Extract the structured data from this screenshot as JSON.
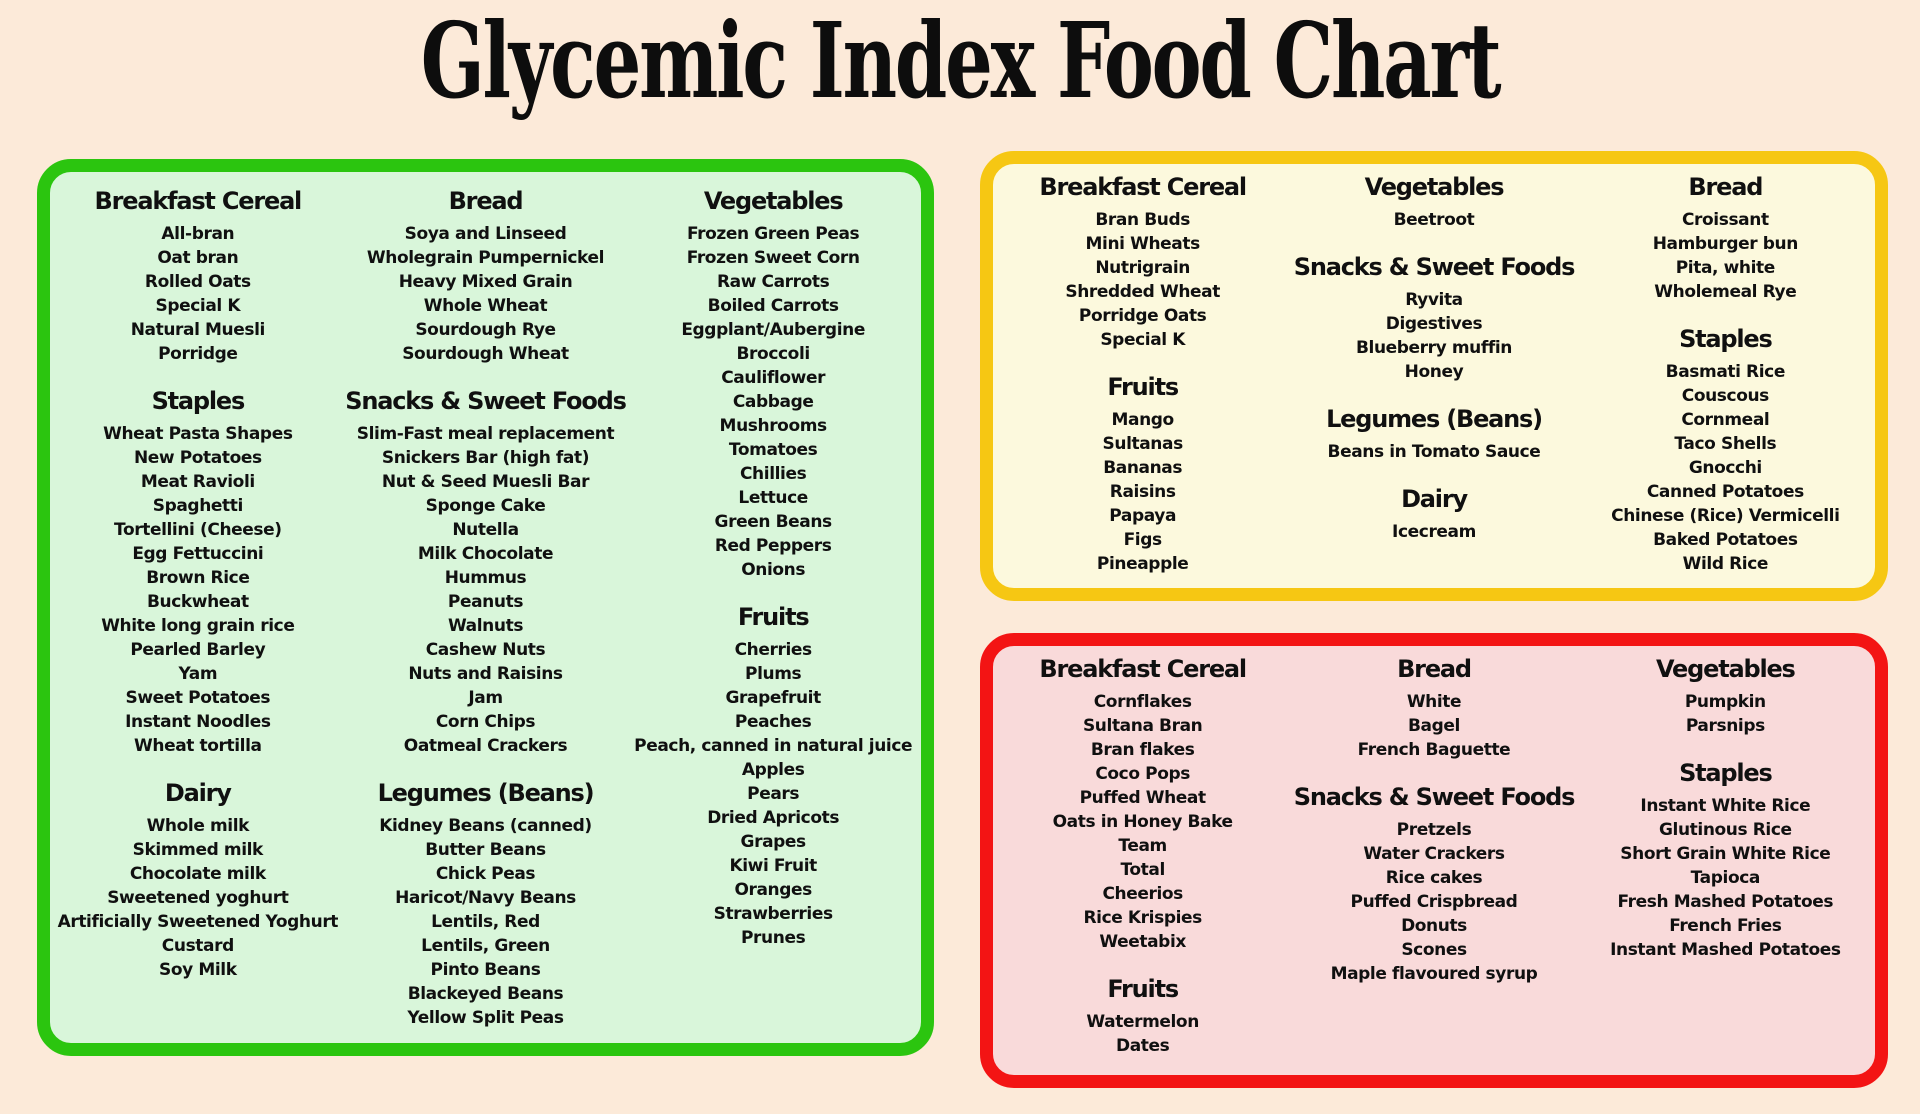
{
  "title": "Glycemic Index Food Chart",
  "colors": {
    "background": "#fcead9",
    "text": "#101010",
    "green_border": "#2bc50f",
    "green_fill": "#d9f6da",
    "yellow_border": "#f6c713",
    "yellow_fill": "#fcf9dd",
    "red_border": "#f31414",
    "red_fill": "#f9dada"
  },
  "panels": [
    {
      "id": "green",
      "border_color": "#2bc50f",
      "fill_color": "#d9f6da",
      "columns": [
        [
          {
            "heading": "Breakfast Cereal",
            "items": [
              "All-bran",
              "Oat bran",
              "Rolled Oats",
              "Special K",
              "Natural Muesli",
              "Porridge"
            ]
          },
          {
            "heading": "Staples",
            "items": [
              "Wheat Pasta Shapes",
              "New Potatoes",
              "Meat Ravioli",
              "Spaghetti",
              "Tortellini (Cheese)",
              "Egg Fettuccini",
              "Brown Rice",
              "Buckwheat",
              "White long grain rice",
              "Pearled Barley",
              "Yam",
              "Sweet Potatoes",
              "Instant Noodles",
              "Wheat tortilla"
            ]
          },
          {
            "heading": "Dairy",
            "items": [
              "Whole milk",
              "Skimmed milk",
              "Chocolate milk",
              "Sweetened yoghurt",
              "Artificially Sweetened Yoghurt",
              "Custard",
              "Soy Milk"
            ]
          }
        ],
        [
          {
            "heading": "Bread",
            "items": [
              "Soya and Linseed",
              "Wholegrain Pumpernickel",
              "Heavy Mixed Grain",
              "Whole Wheat",
              "Sourdough Rye",
              "Sourdough Wheat"
            ]
          },
          {
            "heading": "Snacks & Sweet Foods",
            "items": [
              "Slim-Fast meal replacement",
              "Snickers Bar (high fat)",
              "Nut & Seed Muesli Bar",
              "Sponge Cake",
              "Nutella",
              "Milk Chocolate",
              "Hummus",
              "Peanuts",
              "Walnuts",
              "Cashew Nuts",
              "Nuts and Raisins",
              "Jam",
              "Corn Chips",
              "Oatmeal Crackers"
            ]
          },
          {
            "heading": "Legumes (Beans)",
            "items": [
              "Kidney Beans (canned)",
              "Butter Beans",
              "Chick Peas",
              "Haricot/Navy Beans",
              "Lentils, Red",
              "Lentils, Green",
              "Pinto Beans",
              "Blackeyed Beans",
              "Yellow Split Peas"
            ]
          }
        ],
        [
          {
            "heading": "Vegetables",
            "items": [
              "Frozen Green Peas",
              "Frozen Sweet Corn",
              "Raw Carrots",
              "Boiled Carrots",
              "Eggplant/Aubergine",
              "Broccoli",
              "Cauliflower",
              "Cabbage",
              "Mushrooms",
              "Tomatoes",
              "Chillies",
              "Lettuce",
              "Green Beans",
              "Red Peppers",
              "Onions"
            ]
          },
          {
            "heading": "Fruits",
            "items": [
              "Cherries",
              "Plums",
              "Grapefruit",
              "Peaches",
              "Peach, canned in natural juice",
              "Apples",
              "Pears",
              "Dried Apricots",
              "Grapes",
              "Kiwi Fruit",
              "Oranges",
              "Strawberries",
              "Prunes"
            ]
          }
        ]
      ]
    },
    {
      "id": "yellow",
      "border_color": "#f6c713",
      "fill_color": "#fcf9dd",
      "columns": [
        [
          {
            "heading": "Breakfast Cereal",
            "items": [
              "Bran Buds",
              "Mini Wheats",
              "Nutrigrain",
              "Shredded Wheat",
              "Porridge Oats",
              "Special K"
            ]
          },
          {
            "heading": "Fruits",
            "items": [
              "Mango",
              "Sultanas",
              "Bananas",
              "Raisins",
              "Papaya",
              "Figs",
              "Pineapple"
            ]
          }
        ],
        [
          {
            "heading": "Vegetables",
            "items": [
              "Beetroot"
            ]
          },
          {
            "heading": "Snacks & Sweet Foods",
            "items": [
              "Ryvita",
              "Digestives",
              "Blueberry muffin",
              "Honey"
            ]
          },
          {
            "heading": "Legumes (Beans)",
            "items": [
              "Beans in Tomato Sauce"
            ]
          },
          {
            "heading": "Dairy",
            "items": [
              "Icecream"
            ]
          }
        ],
        [
          {
            "heading": "Bread",
            "items": [
              "Croissant",
              "Hamburger bun",
              "Pita, white",
              "Wholemeal Rye"
            ]
          },
          {
            "heading": "Staples",
            "items": [
              "Basmati Rice",
              "Couscous",
              "Cornmeal",
              "Taco Shells",
              "Gnocchi",
              "Canned Potatoes",
              "Chinese (Rice) Vermicelli",
              "Baked Potatoes",
              "Wild Rice"
            ]
          }
        ]
      ]
    },
    {
      "id": "red",
      "border_color": "#f31414",
      "fill_color": "#f9dada",
      "columns": [
        [
          {
            "heading": "Breakfast Cereal",
            "items": [
              "Cornflakes",
              "Sultana Bran",
              "Bran flakes",
              "Coco Pops",
              "Puffed Wheat",
              "Oats in Honey Bake",
              "Team",
              "Total",
              "Cheerios",
              "Rice Krispies",
              "Weetabix"
            ]
          },
          {
            "heading": "Fruits",
            "items": [
              "Watermelon",
              "Dates"
            ]
          }
        ],
        [
          {
            "heading": "Bread",
            "items": [
              "White",
              "Bagel",
              "French Baguette"
            ]
          },
          {
            "heading": "Snacks & Sweet Foods",
            "items": [
              "Pretzels",
              "Water Crackers",
              "Rice cakes",
              "Puffed Crispbread",
              "Donuts",
              "Scones",
              "Maple flavoured syrup"
            ]
          }
        ],
        [
          {
            "heading": "Vegetables",
            "items": [
              "Pumpkin",
              "Parsnips"
            ]
          },
          {
            "heading": "Staples",
            "items": [
              "Instant White Rice",
              "Glutinous Rice",
              "Short Grain White Rice",
              "Tapioca",
              "Fresh Mashed Potatoes",
              "French Fries",
              "Instant Mashed Potatoes"
            ]
          }
        ]
      ]
    }
  ]
}
